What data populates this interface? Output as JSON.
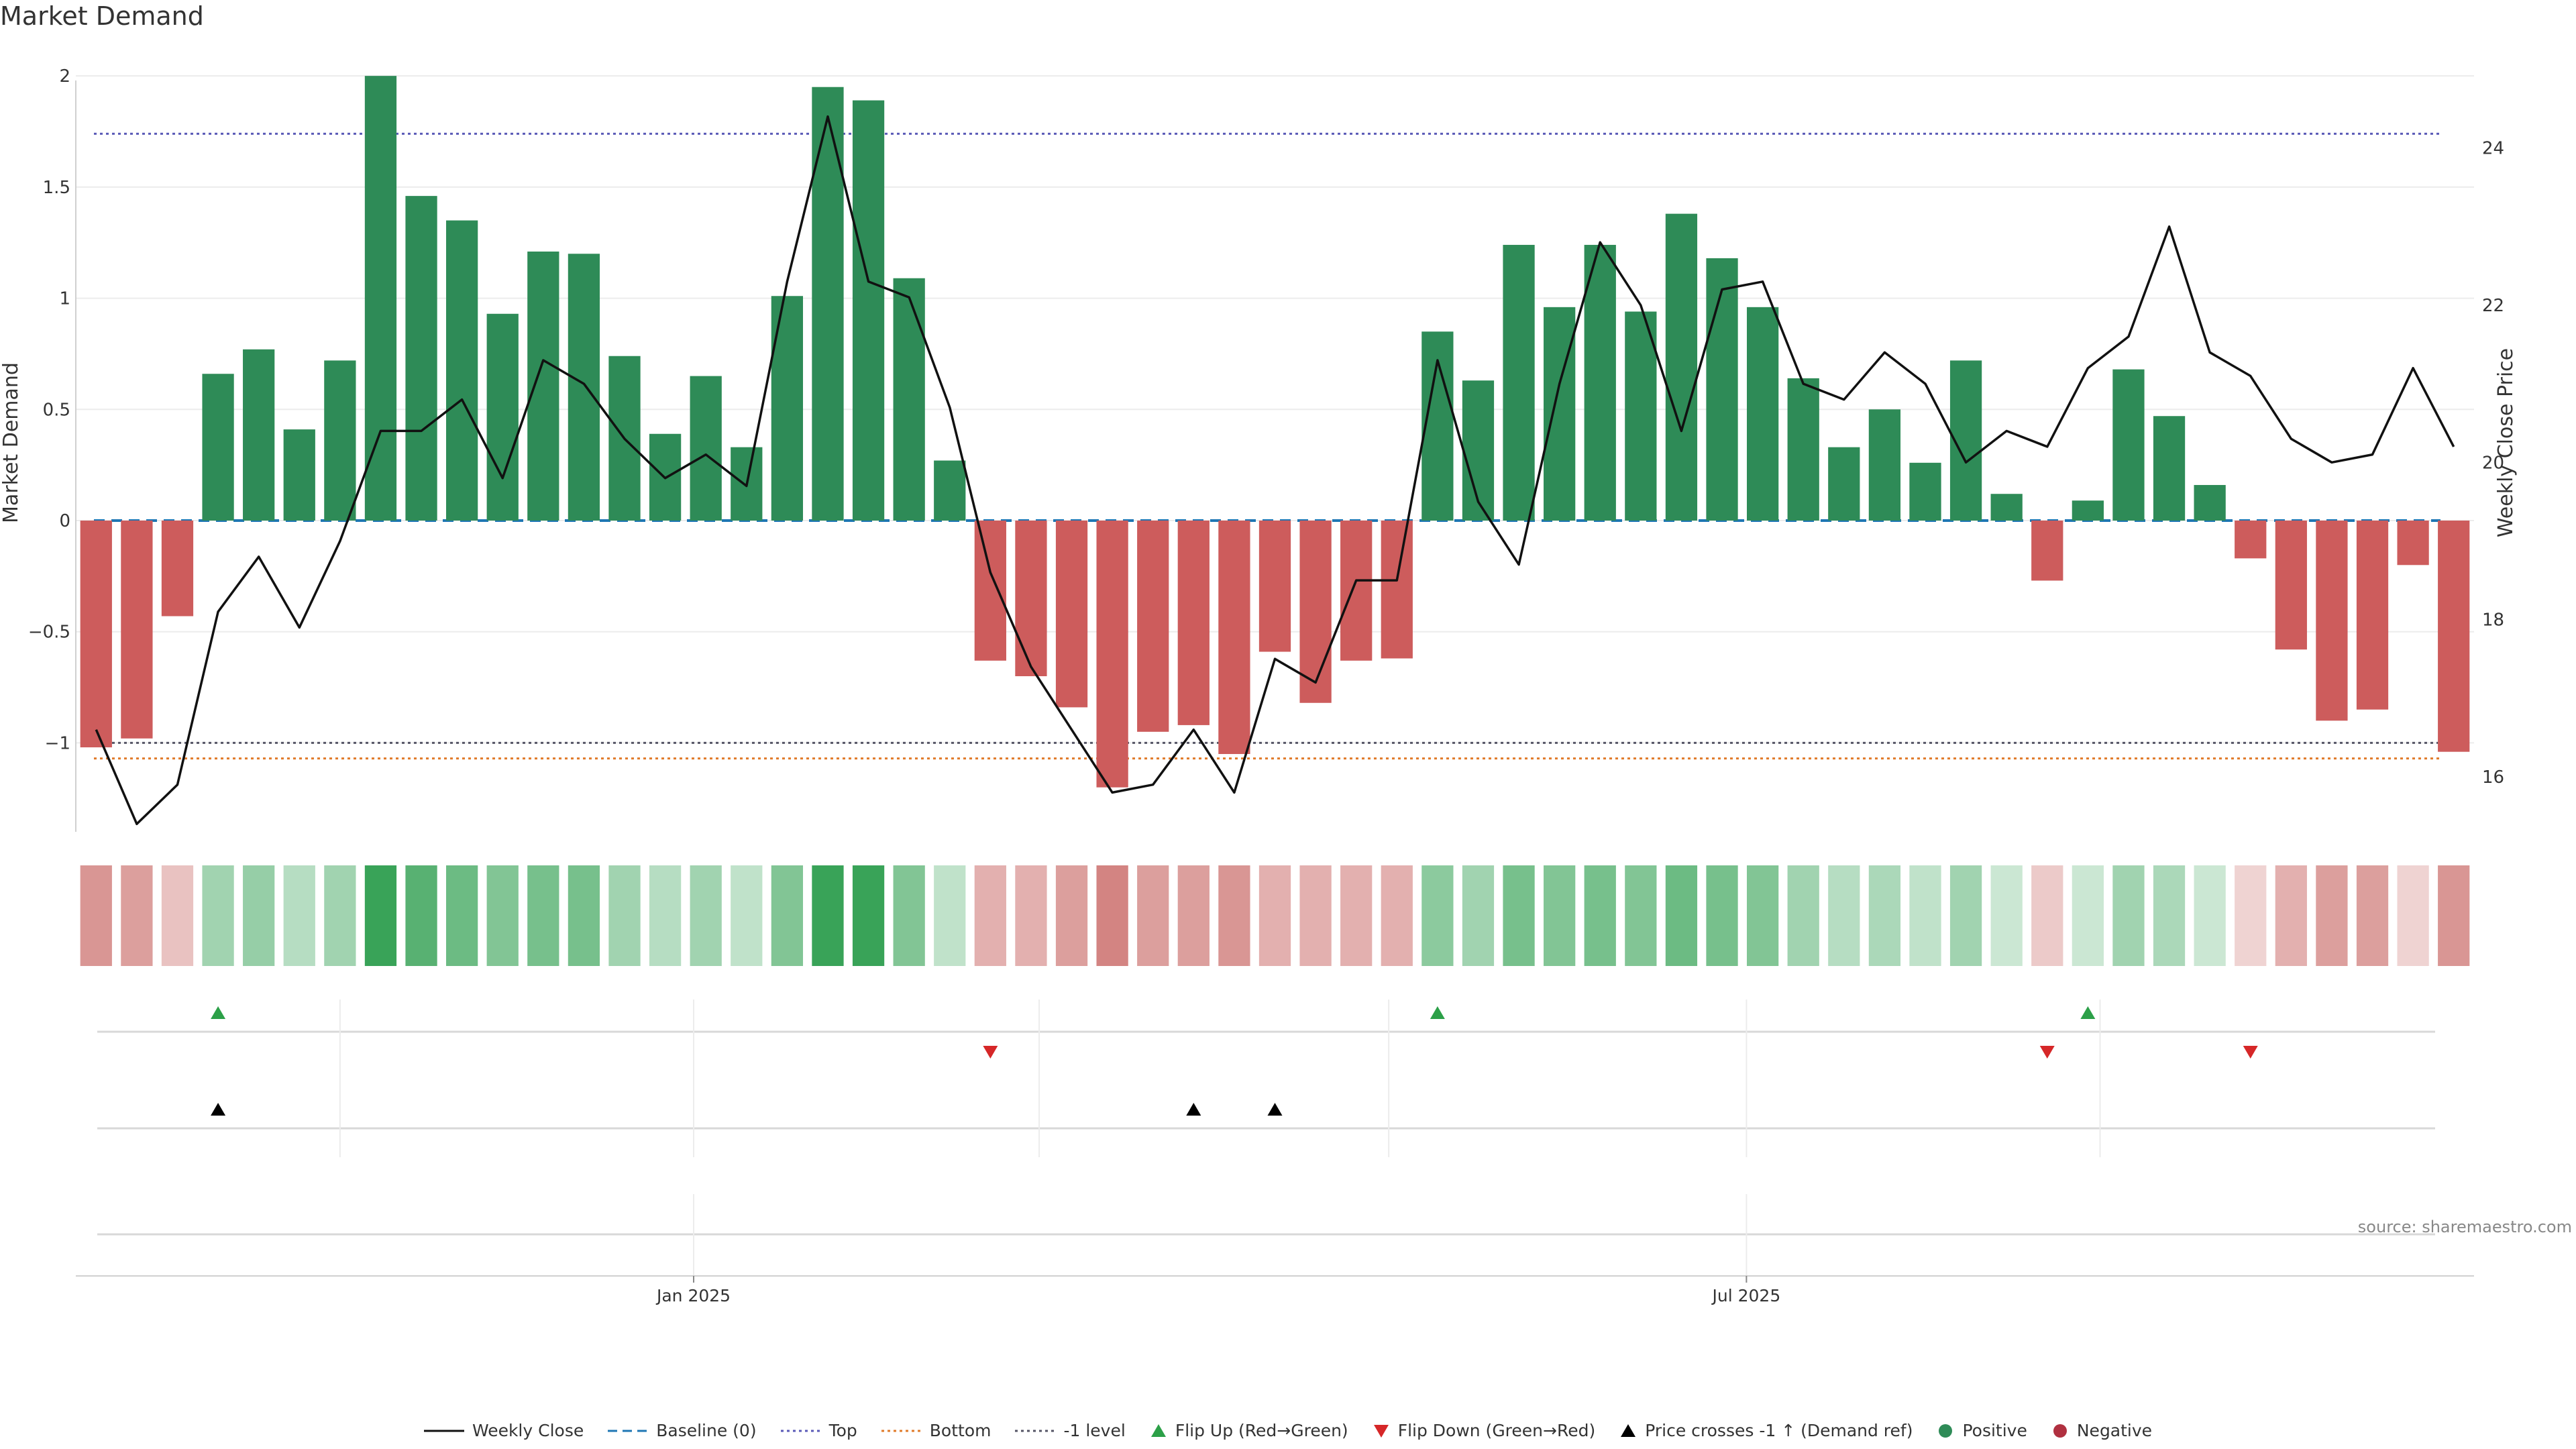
{
  "title": "Market Demand",
  "source": "source: sharemaestro.com",
  "colors": {
    "positive": "#2e8b57",
    "negative": "#cd5c5c",
    "flip_up": "#2ca048",
    "flip_down": "#d62728",
    "price_cross": "#000000",
    "top": "#5a5ab8",
    "bottom": "#e07b2a",
    "baseline": "#1f77b4",
    "minus_one": "#555566"
  },
  "legend": [
    {
      "label": "Weekly Close",
      "style": "line-solid",
      "color": "#111111"
    },
    {
      "label": "Baseline (0)",
      "style": "line-dashed",
      "color": "#1f77b4"
    },
    {
      "label": "Top",
      "style": "line-dotted",
      "color": "#5a5ab8"
    },
    {
      "label": "Bottom",
      "style": "line-dotted",
      "color": "#e07b2a"
    },
    {
      "label": "-1 level",
      "style": "line-dotted",
      "color": "#555566"
    },
    {
      "label": "Flip Up (Red→Green)",
      "style": "tri-up",
      "color": "#2ca048"
    },
    {
      "label": "Flip Down (Green→Red)",
      "style": "tri-down",
      "color": "#d62728"
    },
    {
      "label": "Price crosses -1 ↑ (Demand ref)",
      "style": "tri-up",
      "color": "#000000"
    },
    {
      "label": "Positive",
      "style": "dot",
      "color": "#2e8b57"
    },
    {
      "label": "Negative",
      "style": "dot",
      "color": "#b03040"
    }
  ],
  "chart_data": {
    "type": "bar",
    "ylabel": "Market Demand",
    "y2label": "Weekly Close Price",
    "ylim": [
      -1.4,
      2.1
    ],
    "y2lim": [
      15.3,
      25.2
    ],
    "yticks": [
      -1,
      -0.5,
      0,
      0.5,
      1,
      1.5,
      2
    ],
    "ytick_labels": [
      "−1",
      "−0.5",
      "0",
      "0.5",
      "1",
      "1.5",
      "2"
    ],
    "y2ticks": [
      16,
      18,
      20,
      22,
      24
    ],
    "y2tick_labels": [
      "16",
      "18",
      "20",
      "22",
      "24"
    ],
    "xtick_labels": [
      "Jan 2025",
      "Jul 2025"
    ],
    "xtick_week_index": [
      15.2,
      41.1
    ],
    "month_grid_week_index": [
      6.5,
      15.2,
      23.7,
      32.3,
      41.1,
      49.8
    ],
    "reference_lines": {
      "baseline": 0,
      "top": 1.74,
      "bottom": -1.07,
      "minus_one": -1
    },
    "series": [
      {
        "name": "Market Demand",
        "type": "bar",
        "values": [
          -1.02,
          -0.98,
          -0.43,
          0.66,
          0.77,
          0.41,
          0.72,
          2.0,
          1.46,
          1.35,
          0.93,
          1.21,
          1.2,
          0.74,
          0.39,
          0.65,
          0.33,
          1.01,
          1.95,
          1.89,
          1.09,
          0.27,
          -0.63,
          -0.7,
          -0.84,
          -1.2,
          -0.95,
          -0.92,
          -1.05,
          -0.59,
          -0.82,
          -0.63,
          -0.62,
          0.85,
          0.63,
          1.24,
          0.96,
          1.24,
          0.94,
          1.38,
          1.18,
          0.96,
          0.64,
          0.33,
          0.5,
          0.26,
          0.72,
          0.12,
          -0.27,
          0.09,
          0.68,
          0.47,
          0.16,
          -0.17,
          -0.58,
          -0.9,
          -0.85,
          -0.2,
          -1.04
        ]
      },
      {
        "name": "Weekly Close",
        "type": "line",
        "values": [
          16.6,
          15.4,
          15.9,
          18.1,
          18.8,
          17.9,
          19.0,
          20.4,
          20.4,
          20.8,
          19.8,
          21.3,
          21.0,
          20.3,
          19.8,
          20.1,
          19.7,
          22.3,
          24.4,
          22.3,
          22.1,
          20.7,
          18.6,
          17.4,
          16.6,
          15.8,
          15.9,
          16.6,
          15.8,
          17.5,
          17.2,
          18.5,
          18.5,
          21.3,
          19.5,
          18.7,
          21.0,
          22.8,
          22.0,
          20.4,
          22.2,
          22.3,
          21.0,
          20.8,
          21.4,
          21.0,
          20.0,
          20.4,
          20.2,
          21.2,
          21.6,
          23.0,
          21.4,
          21.1,
          20.3,
          20.0,
          20.1,
          21.2,
          20.2
        ]
      }
    ],
    "heat_alpha": [
      0.6,
      0.55,
      0.35,
      0.45,
      0.5,
      0.35,
      0.45,
      0.95,
      0.8,
      0.7,
      0.6,
      0.65,
      0.65,
      0.45,
      0.35,
      0.45,
      0.3,
      0.6,
      0.95,
      0.95,
      0.6,
      0.3,
      0.45,
      0.45,
      0.55,
      0.7,
      0.55,
      0.55,
      0.6,
      0.45,
      0.45,
      0.45,
      0.45,
      0.55,
      0.45,
      0.65,
      0.6,
      0.65,
      0.6,
      0.7,
      0.65,
      0.6,
      0.45,
      0.35,
      0.4,
      0.3,
      0.45,
      0.25,
      0.3,
      0.25,
      0.45,
      0.4,
      0.25,
      0.25,
      0.45,
      0.55,
      0.55,
      0.25,
      0.6
    ],
    "flip_up_weeks": [
      3,
      33,
      49
    ],
    "flip_down_weeks": [
      22,
      48,
      53
    ],
    "price_cross_weeks": [
      3,
      27,
      29
    ]
  }
}
